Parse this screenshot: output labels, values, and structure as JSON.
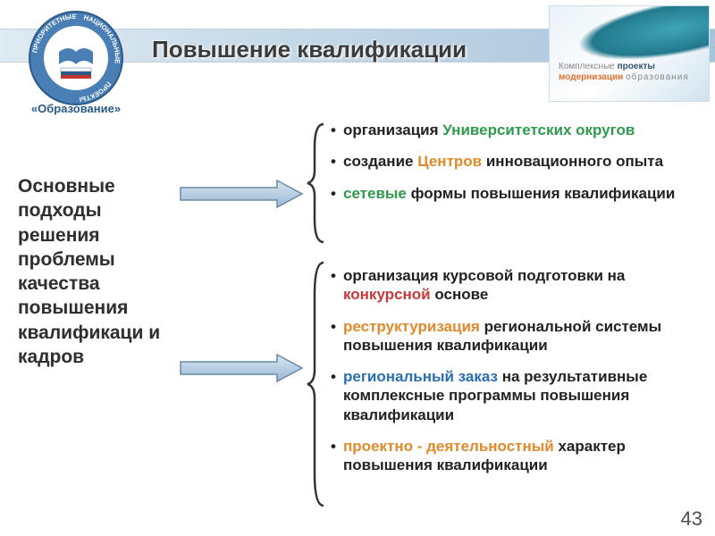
{
  "title": "Повышение квалификации",
  "sideLabel": "Основные подходы решения проблемы качества повышения квалификаци и кадров",
  "logoLeft": {
    "ringTop": "ПРИОРИТЕТНЫЕ",
    "ringRight": "НАЦИОНАЛЬНЫЕ",
    "ringBottom": "ПРОЕКТЫ",
    "caption": "«Образование»"
  },
  "logoRight": {
    "w1": "Комплексные",
    "w2": "проекты",
    "w3": "модернизации",
    "w4": "образования"
  },
  "lists": {
    "top": [
      {
        "pre": "организация ",
        "hl": "Университетских округов",
        "post": "",
        "color": "#2e9a4e"
      },
      {
        "pre": "создание ",
        "hl": "Центров",
        "post": " инновационного опыта",
        "color": "#e08a2a"
      },
      {
        "pre": "",
        "hl": "сетевые",
        "post": " формы повышения квалификации",
        "color": "#2e9a4e"
      }
    ],
    "bottom": [
      {
        "pre": "организация курсовой подготовки на ",
        "hl": "конкурсной",
        "post": " основе",
        "color": "#c63a3a"
      },
      {
        "pre": "",
        "hl": "реструктуризация",
        "post": " региональной системы повышения квалификации",
        "color": "#e08a2a"
      },
      {
        "pre": "",
        "hl": "региональный заказ",
        "post": " на результативные комплексные программы повышения квалификации",
        "color": "#2a6fb0"
      },
      {
        "pre": "",
        "hl": "проектно - деятельностный",
        "post": " характер повышения квалификации",
        "color": "#e08a2a"
      }
    ]
  },
  "arrow": {
    "fill_light": "#d8e6f2",
    "fill_dark": "#9ab8d4",
    "stroke": "#6a8aa8"
  },
  "brace": {
    "stroke": "#333333"
  },
  "pageNum": "43"
}
